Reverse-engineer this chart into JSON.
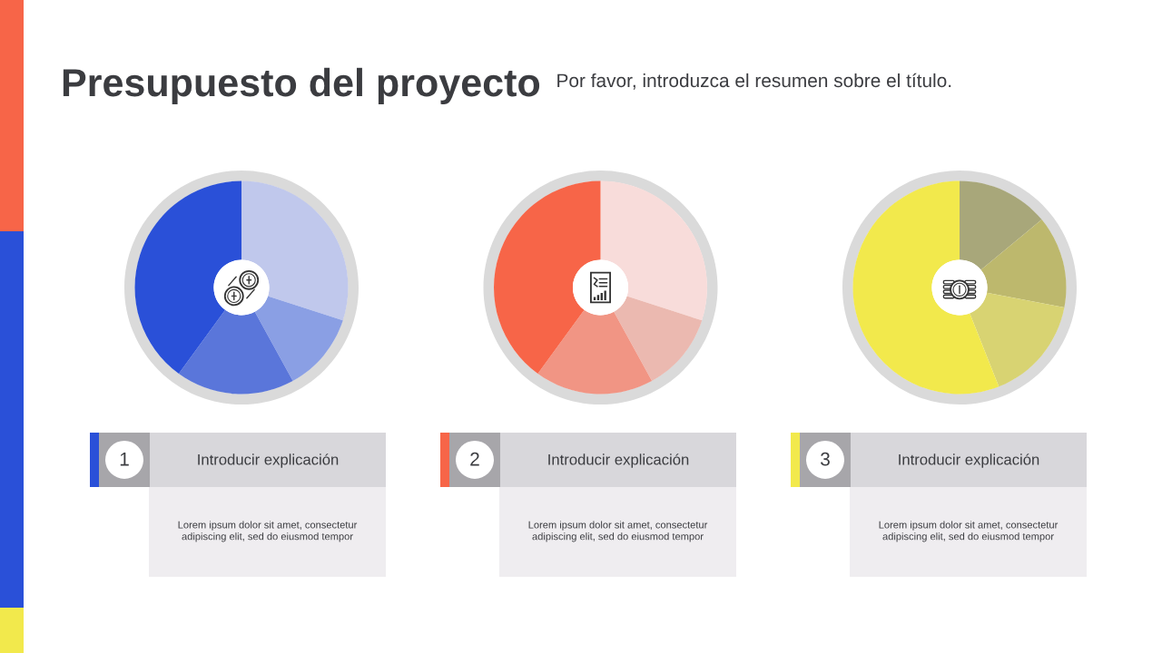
{
  "chart_data": [
    {
      "type": "donut",
      "title": "Presupuesto del proyecto",
      "subtitle": "Por favor, introduzca el resumen sobre el título.",
      "categories": [
        null,
        null,
        null,
        null
      ],
      "values": [
        30,
        12,
        18,
        40
      ],
      "colors": [
        "#c0c8ec",
        "#8a9fe4",
        "#5a76da",
        "#2a50d8"
      ],
      "annotations": [
        "1",
        "Introducir explicación",
        "Lorem ipsum dolor sit amet, consectetur adipiscing elit, sed do eiusmod tempor"
      ]
    },
    {
      "type": "donut",
      "categories": [
        null,
        null,
        null,
        null
      ],
      "values": [
        30,
        12,
        18,
        40
      ],
      "colors": [
        "#f8dcda",
        "#ebb9b0",
        "#f19584",
        "#f76548"
      ],
      "annotations": [
        "2",
        "Introducir explicación",
        "Lorem ipsum dolor sit amet, consectetur adipiscing elit, sed do eiusmod tempor"
      ]
    },
    {
      "type": "donut",
      "categories": [
        null,
        null,
        null,
        null
      ],
      "values": [
        14,
        14,
        16,
        56
      ],
      "colors": [
        "#a8a77a",
        "#bdb86d",
        "#d8d372",
        "#f2e94c"
      ],
      "annotations": [
        "3",
        "Introducir explicación",
        "Lorem ipsum dolor sit amet, consectetur adipiscing elit, sed do eiusmod tempor"
      ]
    }
  ]
}
